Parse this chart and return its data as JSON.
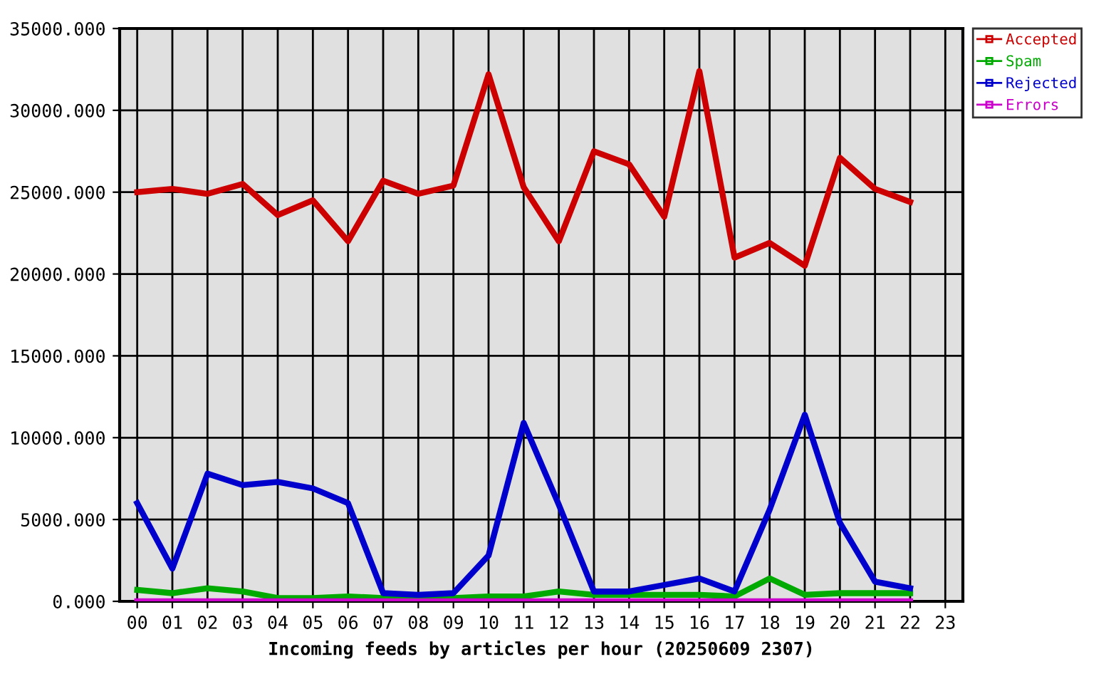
{
  "chart_data": {
    "type": "line",
    "xlabel": "Incoming feeds by articles per hour (20250609 2307)",
    "categories": [
      "00",
      "01",
      "02",
      "03",
      "04",
      "05",
      "06",
      "07",
      "08",
      "09",
      "10",
      "11",
      "12",
      "13",
      "14",
      "15",
      "16",
      "17",
      "18",
      "19",
      "20",
      "21",
      "22",
      "23"
    ],
    "series": [
      {
        "name": "Accepted",
        "color": "#cc0000",
        "values": [
          25000,
          25200,
          24900,
          25500,
          23600,
          24500,
          22000,
          25700,
          24900,
          25400,
          32200,
          25300,
          22000,
          27500,
          26700,
          23500,
          32400,
          21000,
          21900,
          20500,
          27100,
          25200,
          24400,
          null
        ]
      },
      {
        "name": "Spam",
        "color": "#00aa00",
        "values": [
          700,
          500,
          800,
          600,
          200,
          200,
          300,
          200,
          200,
          200,
          300,
          300,
          600,
          400,
          400,
          400,
          400,
          300,
          1400,
          400,
          500,
          500,
          500,
          null
        ]
      },
      {
        "name": "Rejected",
        "color": "#0000cc",
        "values": [
          6000,
          2000,
          7800,
          7100,
          7300,
          6900,
          6000,
          500,
          400,
          500,
          2800,
          10900,
          5900,
          600,
          600,
          1000,
          1400,
          600,
          5600,
          11400,
          4800,
          1200,
          800,
          null
        ]
      },
      {
        "name": "Errors",
        "color": "#cc00cc",
        "values": [
          0,
          0,
          0,
          0,
          0,
          0,
          0,
          0,
          0,
          0,
          0,
          0,
          0,
          0,
          0,
          0,
          0,
          0,
          0,
          0,
          0,
          0,
          0,
          null
        ]
      }
    ],
    "ylim": [
      0,
      35000
    ],
    "yticks": [
      {
        "value": 0,
        "label": "0.000"
      },
      {
        "value": 5000,
        "label": "5000.000"
      },
      {
        "value": 10000,
        "label": "10000.000"
      },
      {
        "value": 15000,
        "label": "15000.000"
      },
      {
        "value": 20000,
        "label": "20000.000"
      },
      {
        "value": 25000,
        "label": "25000.000"
      },
      {
        "value": 30000,
        "label": "30000.000"
      },
      {
        "value": 35000,
        "label": "35000.000"
      }
    ],
    "grid": true,
    "legend": "top right",
    "line_style": "solid"
  }
}
